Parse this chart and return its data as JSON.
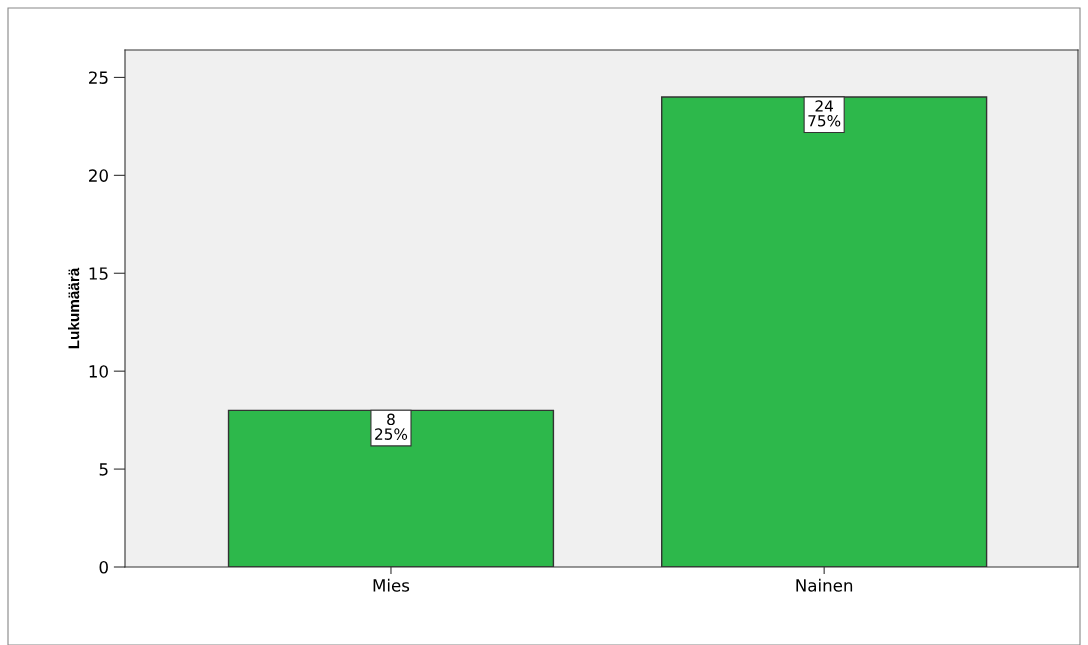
{
  "chart_data": {
    "type": "bar",
    "ylabel": "Lukumäärä",
    "categories": [
      "Mies",
      "Nainen"
    ],
    "values": [
      8,
      24
    ],
    "color": "#2db84b",
    "value_labels": [
      "8\n25%",
      "24\n75%"
    ],
    "ylim": [
      0,
      26.4
    ],
    "yticks": [
      0,
      5,
      10,
      15,
      20,
      25
    ],
    "grid": false
  }
}
